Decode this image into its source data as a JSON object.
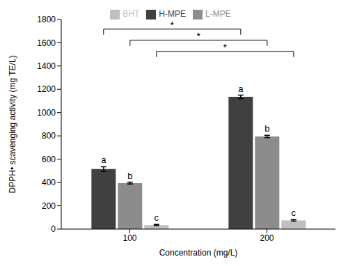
{
  "chart_data": {
    "type": "bar",
    "categories": [
      "100",
      "200"
    ],
    "x_label": "Concentration (mg/L)",
    "y_label": "DPPH• scavenging activity (mg TE/L)",
    "ylim": [
      0,
      1800
    ],
    "yticks": [
      0,
      200,
      400,
      600,
      800,
      1000,
      1200,
      1400,
      1600,
      1800
    ],
    "grid": false,
    "legend": "top",
    "series": [
      {
        "name": "H-MPE",
        "color": "#404040",
        "values": [
          515,
          1135
        ],
        "errors": [
          20,
          15
        ],
        "letters": [
          "a",
          "a"
        ]
      },
      {
        "name": "L-MPE",
        "color": "#8c8c8c",
        "values": [
          395,
          795
        ],
        "errors": [
          8,
          10
        ],
        "letters": [
          "b",
          "b"
        ]
      },
      {
        "name": "BHT",
        "color": "#bfbfbf",
        "values": [
          35,
          75
        ],
        "errors": [
          5,
          6
        ],
        "letters": [
          "c",
          "c"
        ]
      }
    ],
    "significance": [
      {
        "series": "H-MPE",
        "from": "100",
        "to": "200",
        "label": "*"
      },
      {
        "series": "L-MPE",
        "from": "100",
        "to": "200",
        "label": "*"
      },
      {
        "series": "BHT",
        "from": "100",
        "to": "200",
        "label": "*"
      }
    ]
  }
}
